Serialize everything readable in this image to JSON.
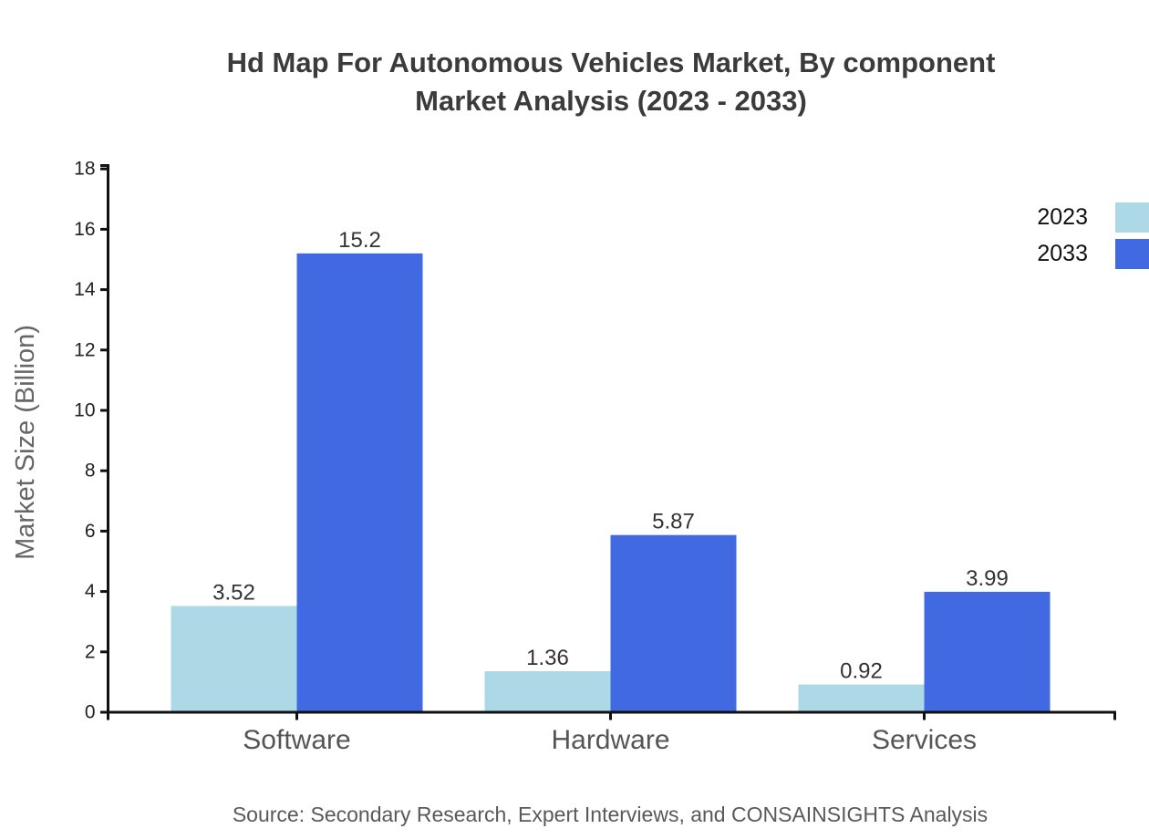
{
  "title": {
    "line1": "Hd Map For Autonomous Vehicles Market, By component",
    "line2": "Market Analysis (2023 - 2033)"
  },
  "source_caption": "Source: Secondary Research, Expert Interviews, and CONSAINSIGHTS Analysis",
  "legend": {
    "position": "top-right",
    "items": [
      {
        "label": "2023",
        "color": "#ADD8E6"
      },
      {
        "label": "2033",
        "color": "#4169E1"
      }
    ]
  },
  "chart_data": {
    "type": "bar",
    "title": "Hd Map For Autonomous Vehicles Market, By component Market Analysis (2023 - 2033)",
    "categories": [
      "Software",
      "Hardware",
      "Services"
    ],
    "series": [
      {
        "name": "2023",
        "color": "#ADD8E6",
        "values": [
          3.52,
          1.36,
          0.92
        ],
        "value_labels": [
          "3.52",
          "1.36",
          "0.92"
        ]
      },
      {
        "name": "2033",
        "color": "#4169E1",
        "values": [
          15.2,
          5.87,
          3.99
        ],
        "value_labels": [
          "15.2",
          "5.87",
          "3.99"
        ]
      }
    ],
    "xlabel": "",
    "ylabel": "Market Size (Billion)",
    "ylim": [
      0,
      18
    ],
    "yticks": [
      0,
      2,
      4,
      6,
      8,
      10,
      12,
      14,
      16,
      18
    ],
    "grid": false,
    "legend_position": "top-right"
  },
  "colors": {
    "axis": "#111111",
    "title_text": "#3b3b3b",
    "tick_text": "#222222",
    "category_text": "#555555",
    "value_text": "#333333",
    "ylabel_text": "#666666",
    "source_text": "#595959",
    "background": "#ffffff"
  }
}
